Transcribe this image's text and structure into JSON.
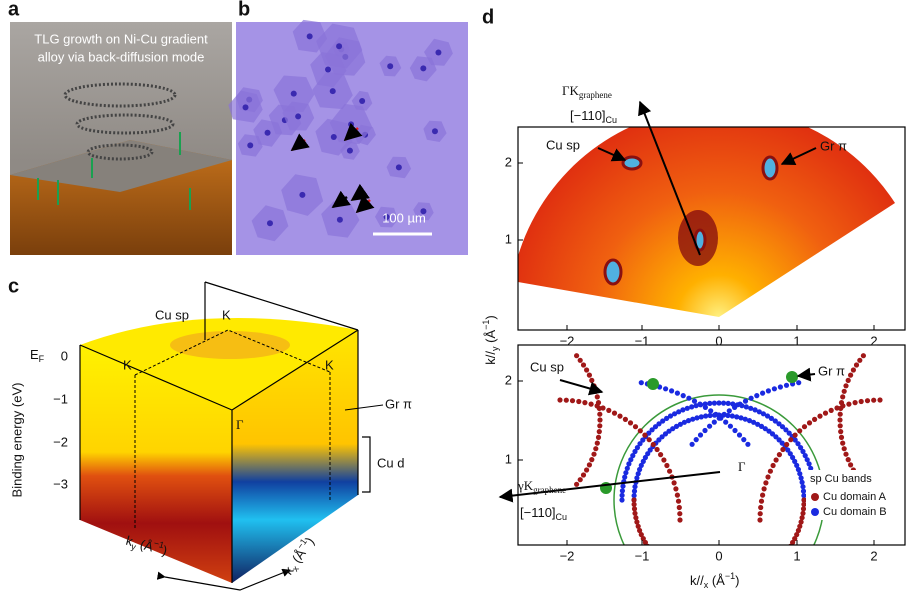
{
  "panels": {
    "a": {
      "letter": "a",
      "caption_lines": [
        "TLG growth on Ni-Cu gradient",
        "alloy via back-diffusion mode"
      ]
    },
    "b": {
      "letter": "b",
      "scale_bar": "100 µm"
    },
    "c": {
      "letter": "c",
      "cu_sp": "Cu sp",
      "k_points": [
        "K",
        "K",
        "K"
      ],
      "ef_main": "E",
      "ef_sub": "F",
      "energy_ticks": [
        "0",
        "−1",
        "−2",
        "−3"
      ],
      "y_title": "Binding energy (eV)",
      "gr_pi": "Gr π",
      "gamma": "Γ",
      "cu_d": "Cu d",
      "ky_label": {
        "main": "k",
        "sub": "y",
        "unit": " (Å",
        "sup": "−1",
        "close": ")"
      },
      "kx_label": {
        "main": "k",
        "sub": "x",
        "unit": " (Å",
        "sup": "−1",
        "close": ")"
      }
    },
    "d": {
      "letter": "d",
      "upper": {
        "direction_main": "ΓK",
        "direction_sub": "graphene",
        "index_main": "[−110]",
        "index_sub": "Cu",
        "cu_sp": "Cu sp",
        "gr_pi": "Gr π",
        "xticks": [
          "−2",
          "−1",
          "0",
          "1",
          "2"
        ],
        "yticks": [
          "1",
          "2"
        ]
      },
      "lower": {
        "cu_sp": "Cu sp",
        "gr_pi": "Gr π",
        "gamma": "Γ",
        "direction_main": "γK",
        "direction_sub": "graphene",
        "index_main": "[−110]",
        "index_sub": "Cu",
        "xticks": [
          "−2",
          "−1",
          "0",
          "1",
          "2"
        ],
        "yticks": [
          "1",
          "2"
        ],
        "legend_title": "sp Cu bands",
        "legend": [
          "Cu domain A",
          "Cu domain B"
        ]
      },
      "y_title": {
        "main": "k//",
        "sub": "y",
        "unit": " (Å",
        "sup": "−1",
        "close": ")"
      },
      "x_title": {
        "main": "k//",
        "sub": "x",
        "unit": " (Å",
        "sup": "−1",
        "close": ")"
      }
    }
  }
}
